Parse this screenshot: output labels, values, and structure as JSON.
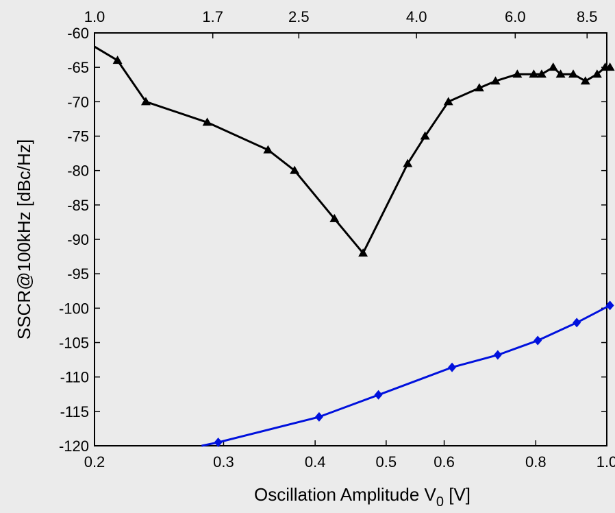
{
  "chart_data": {
    "type": "line",
    "xlabel_main": "Oscillation Amplitude V",
    "xlabel_sub": "0",
    "xlabel_unit": " [V]",
    "ylabel": "SSCR@100kHz [dBc/Hz]",
    "x_scale": "log",
    "xlim": [
      0.2,
      1.0
    ],
    "ylim": [
      -120,
      -60
    ],
    "grid": false,
    "x_ticks": [
      {
        "value": 0.2,
        "label": "0.2"
      },
      {
        "value": 0.3,
        "label": "0.3"
      },
      {
        "value": 0.4,
        "label": "0.4"
      },
      {
        "value": 0.5,
        "label": "0.5"
      },
      {
        "value": 0.6,
        "label": "0.6"
      },
      {
        "value": 0.8,
        "label": "0.8"
      },
      {
        "value": 1.0,
        "label": "1.0"
      }
    ],
    "x_top_ticks": [
      {
        "value": 0.2,
        "label": "1.0"
      },
      {
        "value": 0.29,
        "label": "1.7"
      },
      {
        "value": 0.38,
        "label": "2.5"
      },
      {
        "value": 0.55,
        "label": "4.0"
      },
      {
        "value": 0.75,
        "label": "6.0"
      },
      {
        "value": 0.94,
        "label": "8.5"
      }
    ],
    "y_ticks": [
      {
        "value": -60,
        "label": "-60"
      },
      {
        "value": -65,
        "label": "-65"
      },
      {
        "value": -70,
        "label": "-70"
      },
      {
        "value": -75,
        "label": "-75"
      },
      {
        "value": -80,
        "label": "-80"
      },
      {
        "value": -85,
        "label": "-85"
      },
      {
        "value": -90,
        "label": "-90"
      },
      {
        "value": -95,
        "label": "-95"
      },
      {
        "value": -100,
        "label": "-100"
      },
      {
        "value": -105,
        "label": "-105"
      },
      {
        "value": -110,
        "label": "-110"
      },
      {
        "value": -115,
        "label": "-115"
      },
      {
        "value": -120,
        "label": "-120"
      }
    ],
    "series": [
      {
        "color": "#000000",
        "marker": "triangle",
        "x": [
          0.2,
          0.215,
          0.235,
          0.285,
          0.345,
          0.375,
          0.425,
          0.465,
          0.535,
          0.565,
          0.608,
          0.67,
          0.705,
          0.755,
          0.795,
          0.815,
          0.845,
          0.865,
          0.9,
          0.935,
          0.97,
          0.995,
          1.01
        ],
        "y": [
          -62,
          -64,
          -70,
          -73,
          -77,
          -80,
          -87,
          -92,
          -79,
          -75,
          -70,
          -68,
          -67,
          -66,
          -66,
          -66,
          -65,
          -66,
          -66,
          -67,
          -66,
          -65,
          -65
        ],
        "markers_from": 1
      },
      {
        "color": "#0011dd",
        "marker": "diamond",
        "x": [
          0.28,
          0.295,
          0.405,
          0.488,
          0.615,
          0.71,
          0.805,
          0.91,
          1.01
        ],
        "y": [
          -120,
          -119.5,
          -115.8,
          -112.6,
          -108.6,
          -106.8,
          -104.7,
          -102.1,
          -99.6
        ],
        "markers_from": 1
      }
    ]
  }
}
